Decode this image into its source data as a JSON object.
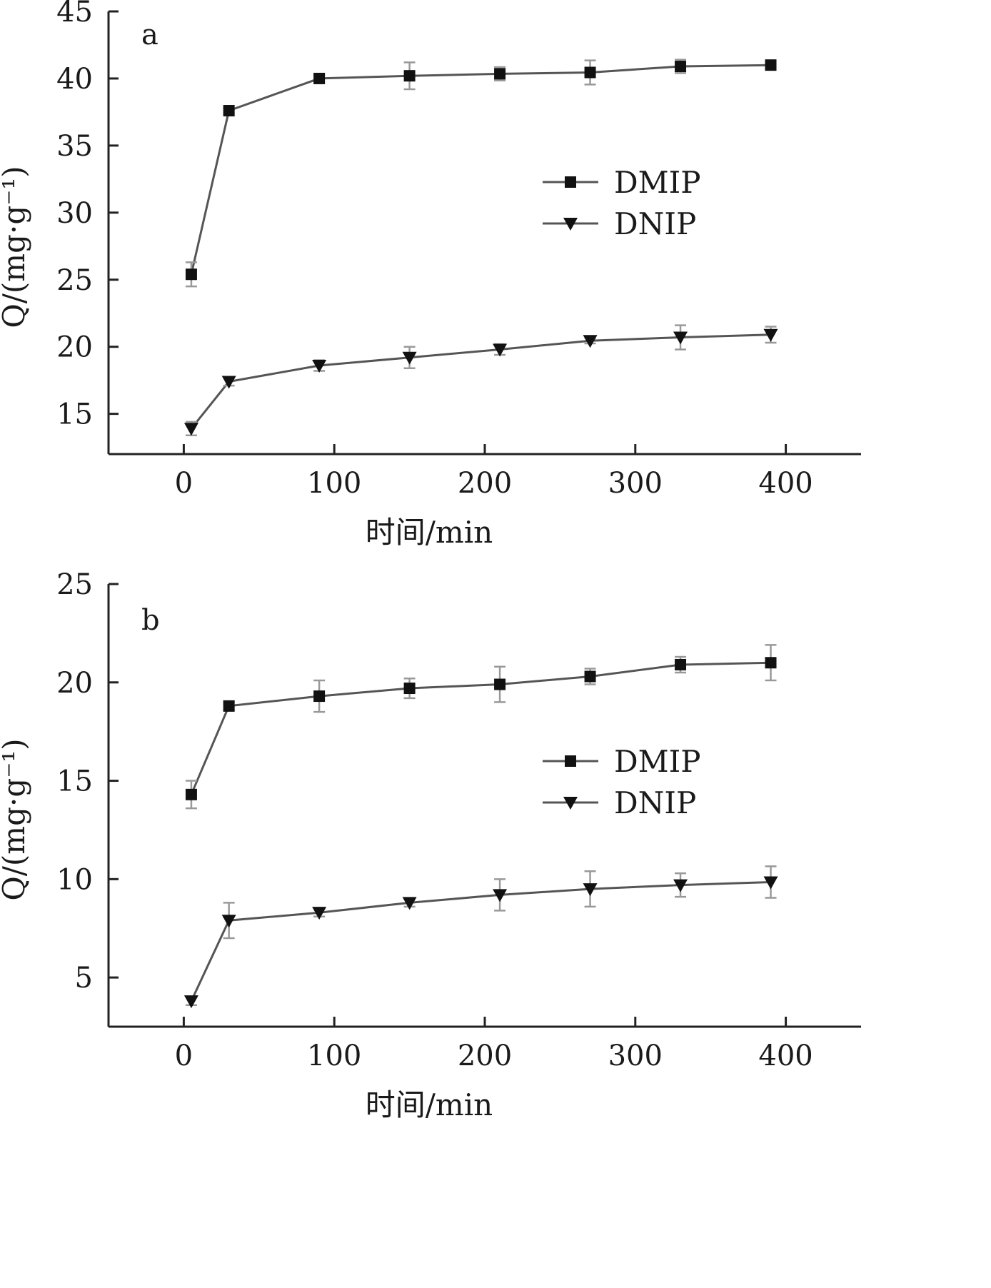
{
  "chart_data": [
    {
      "type": "line",
      "panel_label": "a",
      "xlabel": "时间/min",
      "ylabel": "Q/(mg·g⁻¹)",
      "xlim": [
        -50,
        450
      ],
      "ylim": [
        12,
        45
      ],
      "xticks": [
        0,
        100,
        200,
        300,
        400
      ],
      "yticks": [
        15,
        20,
        25,
        30,
        35,
        40,
        45
      ],
      "legend_position": "center-right",
      "series": [
        {
          "name": "DMIP",
          "marker": "square",
          "x": [
            5,
            30,
            90,
            150,
            210,
            270,
            330,
            390
          ],
          "y": [
            25.4,
            37.6,
            40.0,
            40.2,
            40.35,
            40.45,
            40.9,
            41.0
          ],
          "error": [
            0.9,
            0.2,
            0.3,
            1.0,
            0.5,
            0.9,
            0.5,
            0.2
          ]
        },
        {
          "name": "DNIP",
          "marker": "triangle-down",
          "x": [
            5,
            30,
            90,
            150,
            210,
            270,
            330,
            390
          ],
          "y": [
            13.9,
            17.4,
            18.6,
            19.2,
            19.8,
            20.45,
            20.7,
            20.9
          ],
          "error": [
            0.5,
            0.3,
            0.4,
            0.8,
            0.4,
            0.2,
            0.9,
            0.6
          ]
        }
      ]
    },
    {
      "type": "line",
      "panel_label": "b",
      "xlabel": "时间/min",
      "ylabel": "Q/(mg·g⁻¹)",
      "xlim": [
        -50,
        450
      ],
      "ylim": [
        2.5,
        25
      ],
      "xticks": [
        0,
        100,
        200,
        300,
        400
      ],
      "yticks": [
        5,
        10,
        15,
        20,
        25
      ],
      "legend_position": "center-right",
      "series": [
        {
          "name": "DMIP",
          "marker": "square",
          "x": [
            5,
            30,
            90,
            150,
            210,
            270,
            330,
            390
          ],
          "y": [
            14.3,
            18.8,
            19.3,
            19.7,
            19.9,
            20.3,
            20.9,
            21.0
          ],
          "error": [
            0.7,
            0.2,
            0.8,
            0.5,
            0.9,
            0.4,
            0.4,
            0.9
          ]
        },
        {
          "name": "DNIP",
          "marker": "triangle-down",
          "x": [
            5,
            30,
            90,
            150,
            210,
            270,
            330,
            390
          ],
          "y": [
            3.8,
            7.9,
            8.3,
            8.8,
            9.2,
            9.5,
            9.7,
            9.85
          ],
          "error": [
            0.2,
            0.9,
            0.2,
            0.2,
            0.8,
            0.9,
            0.6,
            0.8
          ]
        }
      ]
    }
  ]
}
